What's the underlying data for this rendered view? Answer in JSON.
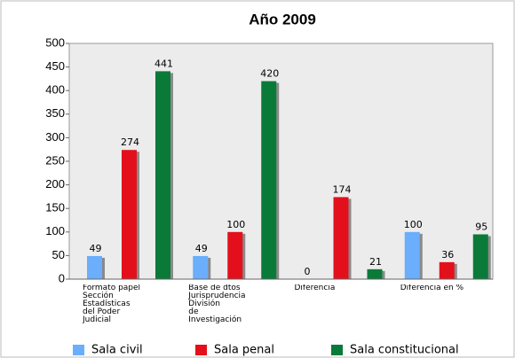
{
  "chart_data": {
    "type": "bar",
    "title": "Año 2009",
    "categories": [
      "Formato papel\nSección\nEstadísticas\ndel Poder\nJudicial",
      "Base de dtos\nJurisprudencia\nDivisión\nde\nInvestigación",
      "Diferencia",
      "Diferencia en %"
    ],
    "series": [
      {
        "name": "Sala civil",
        "color": "#6aaefc",
        "values": [
          49,
          49,
          0,
          100
        ]
      },
      {
        "name": "Sala penal",
        "color": "#e3101c",
        "values": [
          274,
          100,
          174,
          36
        ]
      },
      {
        "name": "Sala constitucional",
        "color": "#0a7a38",
        "values": [
          441,
          420,
          21,
          95
        ]
      }
    ],
    "ylim": [
      0,
      500
    ],
    "yticks": [
      0,
      50,
      100,
      150,
      200,
      250,
      300,
      350,
      400,
      450,
      500
    ],
    "legend": "bottom"
  }
}
